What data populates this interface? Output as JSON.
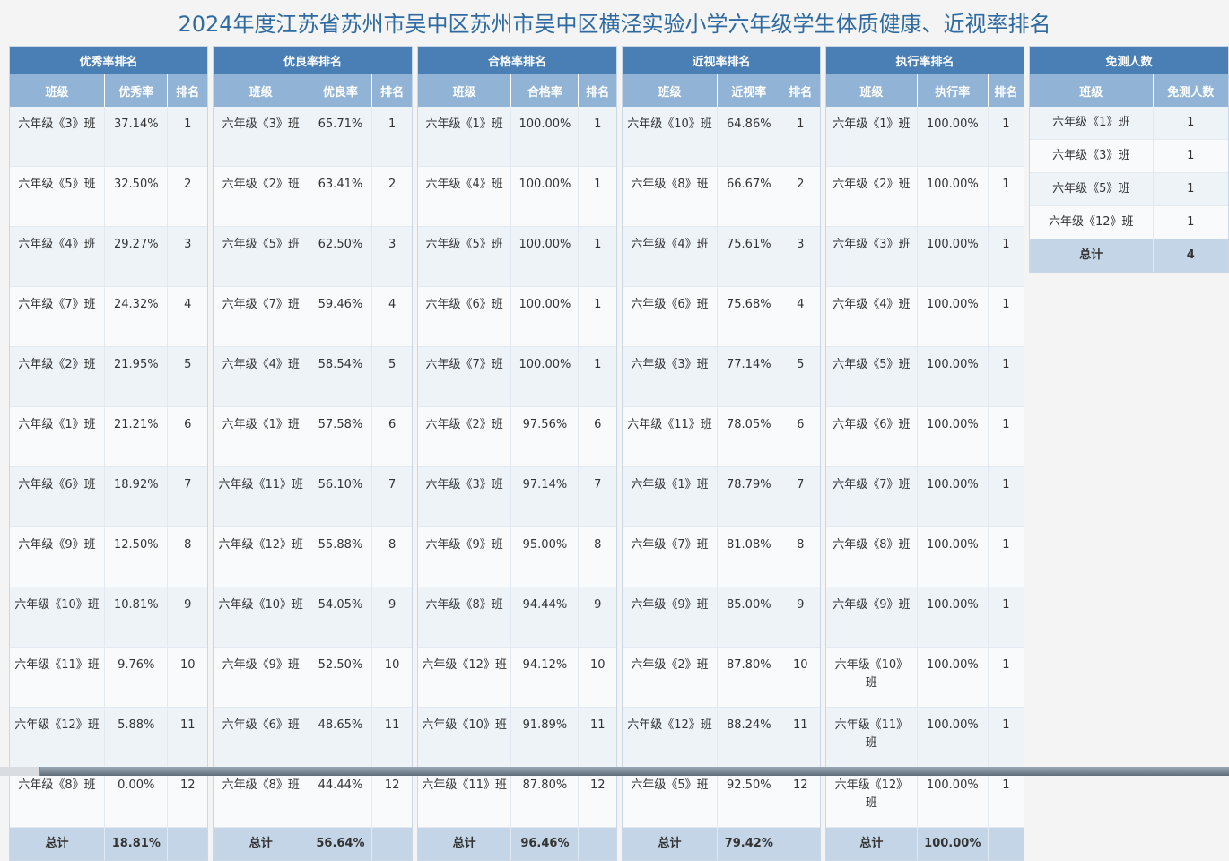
{
  "title": "2024年度江苏省苏州市吴中区苏州市吴中区横泾实验小学六年级学生体质健康、近视率排名",
  "colors": {
    "title": "#2f6aa0",
    "header": "#4a7fb5",
    "subheader": "#91b4d6",
    "total_row": "#c3d5e6"
  },
  "excellent": {
    "caption": "优秀率排名",
    "headers": [
      "班级",
      "优秀率",
      "排名"
    ],
    "rows": [
      [
        "六年级《3》班",
        "37.14%",
        "1"
      ],
      [
        "六年级《5》班",
        "32.50%",
        "2"
      ],
      [
        "六年级《4》班",
        "29.27%",
        "3"
      ],
      [
        "六年级《7》班",
        "24.32%",
        "4"
      ],
      [
        "六年级《2》班",
        "21.95%",
        "5"
      ],
      [
        "六年级《1》班",
        "21.21%",
        "6"
      ],
      [
        "六年级《6》班",
        "18.92%",
        "7"
      ],
      [
        "六年级《9》班",
        "12.50%",
        "8"
      ],
      [
        "六年级《10》班",
        "10.81%",
        "9"
      ],
      [
        "六年级《11》班",
        "9.76%",
        "10"
      ],
      [
        "六年级《12》班",
        "5.88%",
        "11"
      ],
      [
        "六年级《8》班",
        "0.00%",
        "12"
      ]
    ],
    "total": [
      "总计",
      "18.81%",
      ""
    ]
  },
  "good": {
    "caption": "优良率排名",
    "headers": [
      "班级",
      "优良率",
      "排名"
    ],
    "rows": [
      [
        "六年级《3》班",
        "65.71%",
        "1"
      ],
      [
        "六年级《2》班",
        "63.41%",
        "2"
      ],
      [
        "六年级《5》班",
        "62.50%",
        "3"
      ],
      [
        "六年级《7》班",
        "59.46%",
        "4"
      ],
      [
        "六年级《4》班",
        "58.54%",
        "5"
      ],
      [
        "六年级《1》班",
        "57.58%",
        "6"
      ],
      [
        "六年级《11》班",
        "56.10%",
        "7"
      ],
      [
        "六年级《12》班",
        "55.88%",
        "8"
      ],
      [
        "六年级《10》班",
        "54.05%",
        "9"
      ],
      [
        "六年级《9》班",
        "52.50%",
        "10"
      ],
      [
        "六年级《6》班",
        "48.65%",
        "11"
      ],
      [
        "六年级《8》班",
        "44.44%",
        "12"
      ]
    ],
    "total": [
      "总计",
      "56.64%",
      ""
    ]
  },
  "pass": {
    "caption": "合格率排名",
    "headers": [
      "班级",
      "合格率",
      "排名"
    ],
    "rows": [
      [
        "六年级《1》班",
        "100.00%",
        "1"
      ],
      [
        "六年级《4》班",
        "100.00%",
        "1"
      ],
      [
        "六年级《5》班",
        "100.00%",
        "1"
      ],
      [
        "六年级《6》班",
        "100.00%",
        "1"
      ],
      [
        "六年级《7》班",
        "100.00%",
        "1"
      ],
      [
        "六年级《2》班",
        "97.56%",
        "6"
      ],
      [
        "六年级《3》班",
        "97.14%",
        "7"
      ],
      [
        "六年级《9》班",
        "95.00%",
        "8"
      ],
      [
        "六年级《8》班",
        "94.44%",
        "9"
      ],
      [
        "六年级《12》班",
        "94.12%",
        "10"
      ],
      [
        "六年级《10》班",
        "91.89%",
        "11"
      ],
      [
        "六年级《11》班",
        "87.80%",
        "12"
      ]
    ],
    "total": [
      "总计",
      "96.46%",
      ""
    ]
  },
  "myopia": {
    "caption": "近视率排名",
    "headers": [
      "班级",
      "近视率",
      "排名"
    ],
    "rows": [
      [
        "六年级《10》班",
        "64.86%",
        "1"
      ],
      [
        "六年级《8》班",
        "66.67%",
        "2"
      ],
      [
        "六年级《4》班",
        "75.61%",
        "3"
      ],
      [
        "六年级《6》班",
        "75.68%",
        "4"
      ],
      [
        "六年级《3》班",
        "77.14%",
        "5"
      ],
      [
        "六年级《11》班",
        "78.05%",
        "6"
      ],
      [
        "六年级《1》班",
        "78.79%",
        "7"
      ],
      [
        "六年级《7》班",
        "81.08%",
        "8"
      ],
      [
        "六年级《9》班",
        "85.00%",
        "9"
      ],
      [
        "六年级《2》班",
        "87.80%",
        "10"
      ],
      [
        "六年级《12》班",
        "88.24%",
        "11"
      ],
      [
        "六年级《5》班",
        "92.50%",
        "12"
      ]
    ],
    "total": [
      "总计",
      "79.42%",
      ""
    ]
  },
  "execution": {
    "caption": "执行率排名",
    "headers": [
      "班级",
      "执行率",
      "排名"
    ],
    "rows": [
      [
        "六年级《1》班",
        "100.00%",
        "1"
      ],
      [
        "六年级《2》班",
        "100.00%",
        "1"
      ],
      [
        "六年级《3》班",
        "100.00%",
        "1"
      ],
      [
        "六年级《4》班",
        "100.00%",
        "1"
      ],
      [
        "六年级《5》班",
        "100.00%",
        "1"
      ],
      [
        "六年级《6》班",
        "100.00%",
        "1"
      ],
      [
        "六年级《7》班",
        "100.00%",
        "1"
      ],
      [
        "六年级《8》班",
        "100.00%",
        "1"
      ],
      [
        "六年级《9》班",
        "100.00%",
        "1"
      ],
      [
        "六年级《10》班",
        "100.00%",
        "1"
      ],
      [
        "六年级《11》班",
        "100.00%",
        "1"
      ],
      [
        "六年级《12》班",
        "100.00%",
        "1"
      ]
    ],
    "total": [
      "总计",
      "100.00%",
      ""
    ]
  },
  "exempt": {
    "caption": "免测人数",
    "headers": [
      "班级",
      "免测人数"
    ],
    "rows": [
      [
        "六年级《1》班",
        "1"
      ],
      [
        "六年级《3》班",
        "1"
      ],
      [
        "六年级《5》班",
        "1"
      ],
      [
        "六年级《12》班",
        "1"
      ]
    ],
    "total": [
      "总计",
      "4"
    ]
  }
}
